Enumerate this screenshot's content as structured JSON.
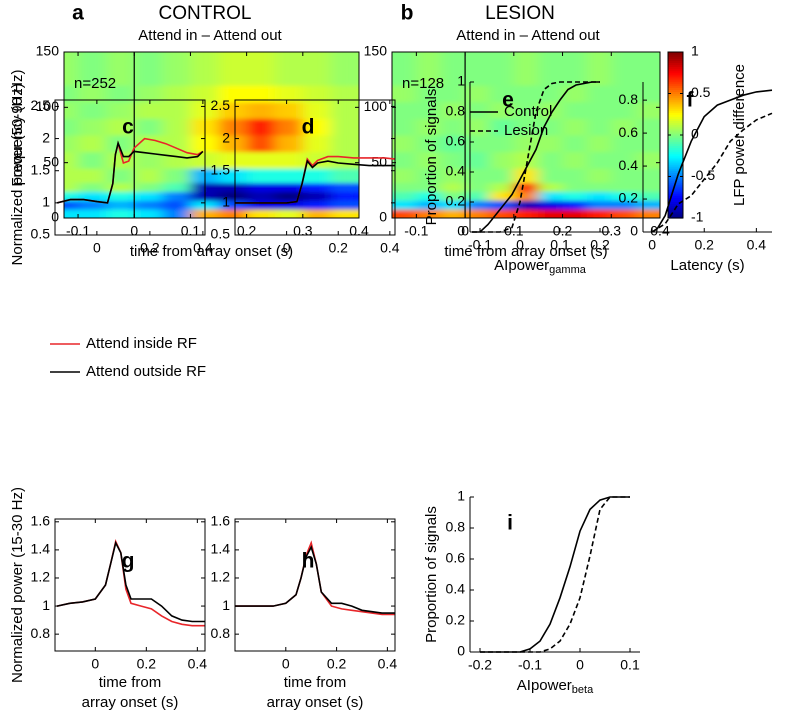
{
  "chart_data": [
    {
      "type": "heatmap",
      "label": "a",
      "title": "CONTROL",
      "subtitle": "Attend in – Attend out",
      "annotation": "n=252",
      "xlabel": "time from array onset (s)",
      "ylabel": "Frequency (Hz)",
      "xlim": [
        -0.125,
        0.4
      ],
      "ylim": [
        0,
        150
      ],
      "xticks": [
        -0.1,
        0,
        0.1,
        0.2,
        0.3,
        0.4
      ],
      "yticks": [
        0,
        50,
        100,
        150
      ],
      "vline": 0,
      "x_edges": [
        -0.15,
        -0.1,
        -0.05,
        0,
        0.05,
        0.1,
        0.15,
        0.2,
        0.25,
        0.3,
        0.35,
        0.4
      ],
      "y_edges": [
        0,
        8,
        16,
        24,
        32,
        45,
        60,
        75,
        90,
        105,
        120,
        150
      ],
      "values": [
        [
          -0.3,
          -0.3,
          -0.2,
          -0.3,
          -0.5,
          0.4,
          0.5,
          0.3,
          0.2,
          0.4,
          0.3
        ],
        [
          -0.6,
          -0.5,
          -0.4,
          -0.5,
          -0.6,
          -0.3,
          -0.6,
          -0.8,
          -0.8,
          -0.7,
          -0.6
        ],
        [
          -0.2,
          -0.3,
          -0.2,
          -0.3,
          -0.5,
          -0.9,
          -1,
          -0.9,
          -1,
          -0.9,
          -0.7
        ],
        [
          0.1,
          0,
          0.1,
          0,
          -0.1,
          -0.9,
          -0.9,
          -0.8,
          -0.8,
          -0.7,
          -0.6
        ],
        [
          0.1,
          0.1,
          0,
          0.1,
          0,
          -0.4,
          -0.3,
          -0.2,
          -0.2,
          -0.2,
          -0.1
        ],
        [
          0.1,
          0,
          0.1,
          0.05,
          0.1,
          0.15,
          0.2,
          0.2,
          0.2,
          0.15,
          0.1
        ],
        [
          0.05,
          0.1,
          0,
          0.1,
          0.1,
          0.25,
          0.4,
          0.6,
          0.4,
          0.2,
          0.1
        ],
        [
          0,
          0.05,
          0.1,
          0,
          0.1,
          0.3,
          0.5,
          0.7,
          0.5,
          0.25,
          0.1
        ],
        [
          0.05,
          0,
          0.05,
          0.1,
          0.1,
          0.2,
          0.35,
          0.4,
          0.35,
          0.2,
          0.1
        ],
        [
          0,
          0.05,
          0,
          0.05,
          0.1,
          0.15,
          0.25,
          0.25,
          0.2,
          0.15,
          0.1
        ],
        [
          0.05,
          0,
          0.05,
          0,
          0.05,
          0.1,
          0.15,
          0.15,
          0.1,
          0.1,
          0.05
        ]
      ]
    },
    {
      "type": "heatmap",
      "label": "b",
      "title": "LESION",
      "subtitle": "Attend in – Attend out",
      "annotation": "n=128",
      "xlabel": "time from array onset (s)",
      "xlim": [
        -0.15,
        0.4
      ],
      "ylim": [
        0,
        150
      ],
      "xticks": [
        -0.1,
        0,
        0.1,
        0.2,
        0.3,
        0.4
      ],
      "yticks": [
        0,
        50,
        100,
        150
      ],
      "vline": 0,
      "colorbar": {
        "label": "LFP power difference",
        "clim": [
          -1,
          1
        ],
        "ticks": [
          -1,
          -0.5,
          0,
          0.5,
          1
        ]
      },
      "x_edges": [
        -0.15,
        -0.1,
        -0.05,
        0,
        0.05,
        0.1,
        0.15,
        0.2,
        0.25,
        0.3,
        0.35,
        0.4
      ],
      "y_edges": [
        0,
        8,
        16,
        24,
        32,
        45,
        60,
        75,
        90,
        105,
        120,
        150
      ],
      "values": [
        [
          0.6,
          0.5,
          0.4,
          0.5,
          0.6,
          0.7,
          0.8,
          0.8,
          0.7,
          0.6,
          0.5
        ],
        [
          -0.3,
          -0.4,
          -0.3,
          -0.5,
          -0.6,
          -0.9,
          -0.8,
          -0.7,
          -0.5,
          -0.5,
          -0.4
        ],
        [
          -0.1,
          -0.2,
          0,
          -0.1,
          0.3,
          0.5,
          -0.3,
          -0.2,
          -0.3,
          -0.2,
          -0.1
        ],
        [
          0,
          0,
          0.1,
          0,
          0.1,
          0.7,
          0.1,
          0,
          0,
          0,
          0
        ],
        [
          0.05,
          0,
          0.05,
          0,
          0,
          0.3,
          0,
          0,
          0.05,
          0,
          0
        ],
        [
          0,
          0.05,
          0,
          -0.05,
          0.05,
          0.1,
          0,
          0.05,
          0,
          0,
          0.05
        ],
        [
          0.05,
          0,
          -0.05,
          0,
          0,
          0.05,
          0.05,
          0,
          0.05,
          0,
          0
        ],
        [
          0,
          0.05,
          0,
          0.05,
          -0.05,
          0,
          0,
          0.05,
          0,
          0.05,
          0
        ],
        [
          0,
          0,
          0.05,
          0,
          0.05,
          0,
          0.05,
          0,
          0,
          0,
          0.05
        ],
        [
          0.05,
          0,
          0,
          0.05,
          0,
          0,
          0,
          0.05,
          0,
          0,
          0
        ],
        [
          0,
          0.05,
          0,
          0,
          0,
          0.05,
          0,
          0,
          0.05,
          0,
          0
        ]
      ]
    },
    {
      "type": "line",
      "label": "c",
      "ylabel": "Normalized power (50-90 Hz)",
      "frame": "box",
      "legend": "below",
      "xlim": [
        -0.158,
        0.408
      ],
      "ylim": [
        0.5,
        2.6
      ],
      "xticks": [
        0,
        0.2,
        0.4
      ],
      "yticks": [
        0.5,
        1,
        1.5,
        2,
        2.5
      ],
      "x": [
        -0.15,
        -0.1,
        -0.05,
        0,
        0.04,
        0.06,
        0.07,
        0.08,
        0.1,
        0.12,
        0.14,
        0.18,
        0.22,
        0.26,
        0.3,
        0.34,
        0.38,
        0.4
      ],
      "series": [
        {
          "name": "Attend inside RF",
          "color": "#e8262a",
          "linestyle": "solid",
          "values": [
            1.0,
            1.05,
            1.05,
            1.02,
            1.0,
            1.3,
            1.75,
            1.92,
            1.62,
            1.65,
            1.85,
            2.0,
            1.97,
            1.92,
            1.85,
            1.78,
            1.75,
            1.8
          ]
        },
        {
          "name": "Attend outside RF",
          "color": "#000000",
          "linestyle": "solid",
          "values": [
            1.0,
            1.05,
            1.05,
            1.02,
            1.0,
            1.3,
            1.75,
            1.93,
            1.72,
            1.72,
            1.8,
            1.78,
            1.76,
            1.74,
            1.72,
            1.7,
            1.72,
            1.8
          ]
        }
      ]
    },
    {
      "type": "line",
      "label": "d",
      "frame": "box",
      "xlim": [
        -0.2,
        0.42
      ],
      "ylim": [
        0.5,
        2.6
      ],
      "xticks": [
        0,
        0.2,
        0.4
      ],
      "yticks": [
        0.5,
        1,
        1.5,
        2,
        2.5
      ],
      "x": [
        -0.2,
        -0.1,
        -0.05,
        0,
        0.04,
        0.06,
        0.08,
        0.1,
        0.12,
        0.16,
        0.2,
        0.26,
        0.32,
        0.38,
        0.42
      ],
      "series": [
        {
          "color": "#e8262a",
          "linestyle": "solid",
          "values": [
            1.0,
            1.0,
            1.0,
            1.0,
            1.02,
            1.3,
            1.68,
            1.58,
            1.66,
            1.72,
            1.72,
            1.7,
            1.7,
            1.7,
            1.68
          ]
        },
        {
          "color": "#000000",
          "linestyle": "solid",
          "values": [
            1.0,
            1.0,
            1.0,
            1.0,
            1.02,
            1.3,
            1.65,
            1.55,
            1.62,
            1.65,
            1.62,
            1.6,
            1.58,
            1.58,
            1.58
          ]
        }
      ]
    },
    {
      "type": "line",
      "label": "e",
      "ylabel": "Proportion of signals",
      "xlabel": "AIpower",
      "xlabel_subscript": "gamma",
      "frame": "open",
      "legend": "upper left",
      "xlim": [
        -0.125,
        0.225
      ],
      "ylim": [
        0,
        1
      ],
      "xticks": [
        -0.1,
        0,
        0.1,
        0.2
      ],
      "yticks": [
        0,
        0.2,
        0.4,
        0.6,
        0.8,
        1
      ],
      "x": [
        -0.12,
        -0.1,
        -0.08,
        -0.05,
        -0.02,
        0,
        0.02,
        0.04,
        0.06,
        0.08,
        0.1,
        0.12,
        0.14,
        0.16,
        0.18,
        0.2
      ],
      "series": [
        {
          "name": "Control",
          "color": "#000000",
          "linestyle": "solid",
          "values": [
            0,
            0,
            0.05,
            0.15,
            0.25,
            0.35,
            0.45,
            0.55,
            0.7,
            0.8,
            0.88,
            0.95,
            0.98,
            0.99,
            1,
            1
          ]
        },
        {
          "name": "Lesion",
          "color": "#000000",
          "linestyle": "dashed",
          "values": [
            0,
            0,
            0,
            0,
            0.03,
            0.2,
            0.5,
            0.8,
            0.95,
            0.99,
            1,
            1,
            1,
            1,
            1,
            1
          ]
        }
      ]
    },
    {
      "type": "line",
      "label": "f",
      "xlabel": "Latency (s)",
      "frame": "open",
      "xlim": [
        -0.035,
        0.46
      ],
      "ylim": [
        0,
        0.91
      ],
      "xticks": [
        0,
        0.2,
        0.4
      ],
      "yticks": [
        0,
        0.2,
        0.4,
        0.6,
        0.8
      ],
      "x": [
        0,
        0.02,
        0.05,
        0.08,
        0.1,
        0.15,
        0.2,
        0.25,
        0.3,
        0.35,
        0.4,
        0.46
      ],
      "series": [
        {
          "color": "#000000",
          "linestyle": "solid",
          "values": [
            0,
            0.02,
            0.1,
            0.25,
            0.35,
            0.55,
            0.7,
            0.77,
            0.8,
            0.83,
            0.85,
            0.86
          ]
        },
        {
          "color": "#000000",
          "linestyle": "dashed",
          "values": [
            0,
            0.02,
            0.05,
            0.12,
            0.17,
            0.22,
            0.32,
            0.42,
            0.55,
            0.62,
            0.68,
            0.72
          ]
        }
      ]
    },
    {
      "type": "line",
      "label": "g",
      "ylabel": "Normalized power (15-30 Hz)",
      "xlabel": [
        "time from",
        "array onset (s)"
      ],
      "frame": "box",
      "xlim": [
        -0.158,
        0.43
      ],
      "ylim": [
        0.68,
        1.62
      ],
      "xticks": [
        0,
        0.2,
        0.4
      ],
      "yticks": [
        0.8,
        1,
        1.2,
        1.4,
        1.6
      ],
      "x": [
        -0.15,
        -0.1,
        -0.05,
        0,
        0.04,
        0.06,
        0.08,
        0.1,
        0.12,
        0.14,
        0.18,
        0.22,
        0.26,
        0.3,
        0.34,
        0.38,
        0.43
      ],
      "series": [
        {
          "color": "#e8262a",
          "linestyle": "solid",
          "values": [
            1.0,
            1.02,
            1.03,
            1.05,
            1.15,
            1.3,
            1.46,
            1.38,
            1.12,
            1.02,
            1.0,
            0.98,
            0.93,
            0.89,
            0.87,
            0.86,
            0.86
          ]
        },
        {
          "color": "#000000",
          "linestyle": "solid",
          "values": [
            1.0,
            1.02,
            1.03,
            1.05,
            1.15,
            1.3,
            1.45,
            1.38,
            1.15,
            1.05,
            1.05,
            1.05,
            1.0,
            0.93,
            0.9,
            0.89,
            0.89
          ]
        }
      ]
    },
    {
      "type": "line",
      "label": "h",
      "xlabel": [
        "time from",
        "array onset (s)"
      ],
      "frame": "box",
      "xlim": [
        -0.2,
        0.43
      ],
      "ylim": [
        0.68,
        1.62
      ],
      "xticks": [
        0,
        0.2,
        0.4
      ],
      "yticks": [
        0.8,
        1,
        1.2,
        1.4,
        1.6
      ],
      "x": [
        -0.2,
        -0.1,
        -0.05,
        0,
        0.04,
        0.06,
        0.08,
        0.1,
        0.12,
        0.14,
        0.18,
        0.22,
        0.26,
        0.3,
        0.34,
        0.38,
        0.43
      ],
      "series": [
        {
          "color": "#e8262a",
          "linestyle": "solid",
          "values": [
            1.0,
            1.0,
            1.0,
            1.02,
            1.08,
            1.2,
            1.36,
            1.45,
            1.3,
            1.1,
            1.0,
            0.98,
            0.97,
            0.96,
            0.95,
            0.94,
            0.94
          ]
        },
        {
          "color": "#000000",
          "linestyle": "solid",
          "values": [
            1.0,
            1.0,
            1.0,
            1.02,
            1.08,
            1.2,
            1.35,
            1.42,
            1.3,
            1.1,
            1.02,
            1.02,
            1.0,
            0.97,
            0.96,
            0.95,
            0.95
          ]
        }
      ]
    },
    {
      "type": "line",
      "label": "i",
      "ylabel": "Proportion of signals",
      "xlabel": "AIpower",
      "xlabel_subscript": "beta",
      "frame": "open",
      "xlim": [
        -0.22,
        0.12
      ],
      "ylim": [
        0,
        1
      ],
      "xticks": [
        -0.2,
        -0.1,
        0,
        0.1
      ],
      "yticks": [
        0,
        0.2,
        0.4,
        0.6,
        0.8,
        1
      ],
      "x": [
        -0.2,
        -0.12,
        -0.1,
        -0.08,
        -0.06,
        -0.04,
        -0.02,
        0,
        0.02,
        0.04,
        0.06,
        0.1
      ],
      "series": [
        {
          "color": "#000000",
          "linestyle": "solid",
          "values": [
            0,
            0,
            0.02,
            0.07,
            0.18,
            0.35,
            0.55,
            0.78,
            0.92,
            0.98,
            1,
            1
          ]
        },
        {
          "color": "#000000",
          "linestyle": "dashed",
          "values": [
            0,
            0,
            0,
            0,
            0.02,
            0.07,
            0.18,
            0.35,
            0.62,
            0.92,
            1,
            1
          ]
        }
      ]
    }
  ]
}
